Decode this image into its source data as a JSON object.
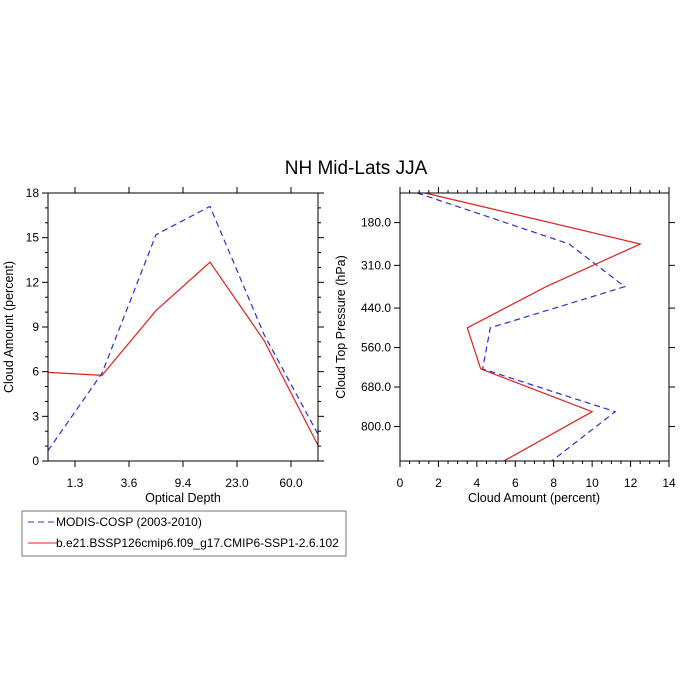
{
  "title": "NH Mid-Lats JJA",
  "colors": {
    "obs": "#2d2dd6",
    "model": "#e02020"
  },
  "legend": [
    {
      "name": "MODIS-COSP (2003-2010)",
      "style": "dashed",
      "color": "#2d2dd6"
    },
    {
      "name": "b.e21.BSSP126cmip6.f09_g17.CMIP6-SSP1-2.6.102",
      "style": "solid",
      "color": "#e02020"
    }
  ],
  "chart_data": [
    {
      "type": "line",
      "xlabel": "Optical Depth",
      "ylabel": "Cloud Amount (percent)",
      "x_tick_labels": [
        "1.3",
        "3.6",
        "9.4",
        "23.0",
        "60.0"
      ],
      "x_tick_positions": [
        1,
        3,
        5,
        7,
        9
      ],
      "x_range": [
        0,
        10
      ],
      "ylim": [
        0,
        18
      ],
      "y_ticks": [
        0,
        3,
        6,
        9,
        12,
        15,
        18
      ],
      "series": [
        {
          "key": "obs",
          "x": [
            0,
            2,
            4,
            6,
            8,
            10
          ],
          "values": [
            0.7,
            5.9,
            15.2,
            17.1,
            8.5,
            1.8
          ]
        },
        {
          "key": "model",
          "x": [
            0,
            2,
            4,
            6,
            8,
            10
          ],
          "values": [
            5.95,
            5.75,
            10.1,
            13.35,
            8.1,
            1.05
          ]
        }
      ]
    },
    {
      "type": "line",
      "xlabel": "Cloud Amount (percent)",
      "ylabel": "Cloud Top Pressure (hPa)",
      "xlim": [
        0,
        14
      ],
      "x_ticks": [
        0,
        2,
        4,
        6,
        8,
        10,
        12,
        14
      ],
      "y_tick_labels": [
        "180.0",
        "310.0",
        "440.0",
        "560.0",
        "680.0",
        "800.0"
      ],
      "y_tick_positions": [
        180,
        310,
        440,
        560,
        680,
        800
      ],
      "ylim": [
        90,
        905
      ],
      "y_reversed": true,
      "series": [
        {
          "key": "obs",
          "y": [
            90,
            245,
            375,
            500,
            625,
            755,
            905
          ],
          "values": [
            0.9,
            8.8,
            11.7,
            4.7,
            4.3,
            11.2,
            7.9
          ]
        },
        {
          "key": "model",
          "y": [
            90,
            245,
            375,
            500,
            625,
            755,
            905
          ],
          "values": [
            1.3,
            12.5,
            7.6,
            3.5,
            4.2,
            10.0,
            5.4
          ]
        }
      ]
    }
  ]
}
